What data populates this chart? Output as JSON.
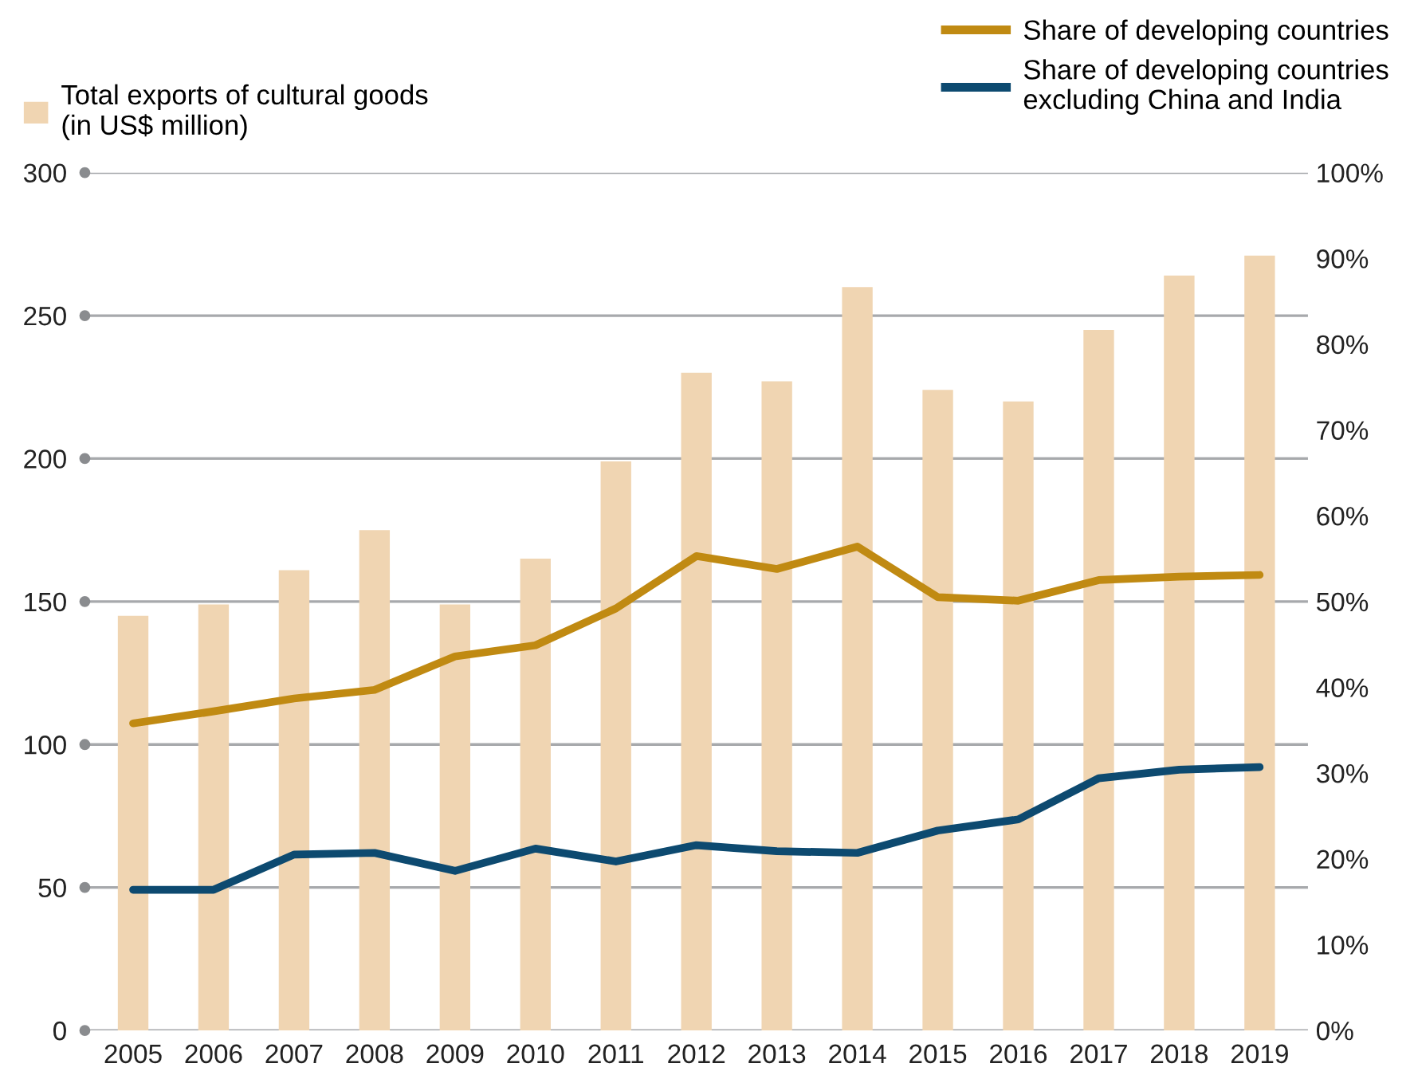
{
  "chart_data": {
    "type": "bar",
    "categories": [
      "2005",
      "2006",
      "2007",
      "2008",
      "2009",
      "2010",
      "2011",
      "2012",
      "2013",
      "2014",
      "2015",
      "2016",
      "2017",
      "2018",
      "2019"
    ],
    "series": [
      {
        "name": "Total exports of cultural goods\n(in US$ million)",
        "color": "#f0d5b2",
        "values": [
          145,
          149,
          161,
          175,
          149,
          165,
          199,
          230,
          227,
          260,
          224,
          220,
          245,
          264,
          271
        ]
      },
      {
        "name": "Share of developing countries",
        "type": "line",
        "axis": "y2",
        "color": "#c08a12",
        "values": [
          35.8,
          37.2,
          38.7,
          39.7,
          43.6,
          44.9,
          49.2,
          55.3,
          53.8,
          56.4,
          50.5,
          50.1,
          52.5,
          52.9,
          53.1
        ]
      },
      {
        "name": "Share of developing countries\nexcluding China and India",
        "type": "line",
        "axis": "y2",
        "color": "#0d4a70",
        "values": [
          16.4,
          16.4,
          20.5,
          20.7,
          18.6,
          21.2,
          19.7,
          21.6,
          20.9,
          20.7,
          23.3,
          24.6,
          29.4,
          30.4,
          30.7
        ]
      }
    ],
    "ylim": [
      0,
      300
    ],
    "yticks": [
      0,
      50,
      100,
      150,
      200,
      250,
      300
    ],
    "y2lim": [
      0,
      100
    ],
    "y2ticks": [
      {
        "value": 0,
        "label": "0%"
      },
      {
        "value": 10,
        "label": "10%"
      },
      {
        "value": 20,
        "label": "20%"
      },
      {
        "value": 30,
        "label": "30%"
      },
      {
        "value": 40,
        "label": "40%"
      },
      {
        "value": 50,
        "label": "50%"
      },
      {
        "value": 60,
        "label": "60%"
      },
      {
        "value": 70,
        "label": "70%"
      },
      {
        "value": 80,
        "label": "80%"
      },
      {
        "value": 90,
        "label": "90%"
      },
      {
        "value": 100,
        "label": "100%"
      }
    ],
    "grid": "y",
    "legend": "top",
    "marker": "none",
    "line_style": "solid"
  }
}
